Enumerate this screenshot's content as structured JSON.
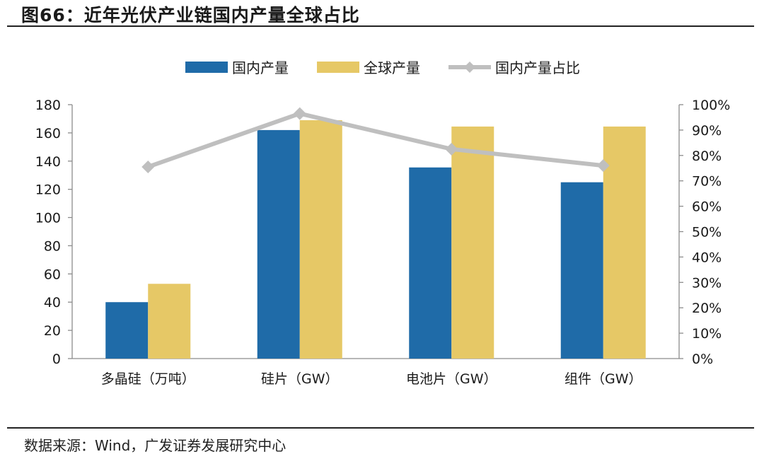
{
  "header": {
    "title": "图66：近年光伏产业链国内产量全球占比"
  },
  "footer": {
    "source": "数据来源：Wind，广发证券发展研究中心"
  },
  "colors": {
    "domestic": "#1f6ba8",
    "global": "#e6c866",
    "ratio": "#bfbfbf",
    "axis": "#8c8c8c"
  },
  "chart_data": {
    "type": "bar",
    "title": "近年光伏产业链国内产量全球占比",
    "categories": [
      "多晶硅（万吨）",
      "硅片（GW）",
      "电池片（GW）",
      "组件（GW）"
    ],
    "series": [
      {
        "name": "国内产量",
        "axis": "left",
        "values": [
          40,
          162,
          135.5,
          125
        ]
      },
      {
        "name": "全球产量",
        "axis": "left",
        "values": [
          53,
          169,
          164.5,
          164.5
        ]
      },
      {
        "name": "国内产量占比",
        "type": "line",
        "axis": "right",
        "values": [
          75.5,
          96.5,
          82.5,
          76
        ]
      }
    ],
    "left_axis": {
      "min": 0,
      "max": 180,
      "ticks": [
        "0",
        "20",
        "40",
        "60",
        "80",
        "100",
        "120",
        "140",
        "160",
        "180"
      ]
    },
    "right_axis": {
      "min": 0,
      "max": 100,
      "ticks": [
        "0%",
        "10%",
        "20%",
        "30%",
        "40%",
        "50%",
        "60%",
        "70%",
        "80%",
        "90%",
        "100%"
      ]
    },
    "legend_position": "top-center"
  }
}
